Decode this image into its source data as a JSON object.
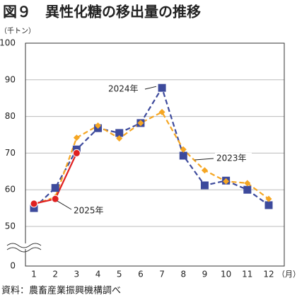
{
  "chart_data": {
    "type": "line",
    "title": "図９　異性化糖の移出量の推移",
    "y_label": "（千トン）",
    "x_label": "（月）",
    "source": "資料：農畜産業振興機構調べ",
    "categories": [
      "1",
      "2",
      "3",
      "4",
      "5",
      "6",
      "7",
      "8",
      "9",
      "10",
      "11",
      "12"
    ],
    "series": [
      {
        "name": "2024年",
        "color": "#3d4a9c",
        "marker": "square",
        "dashed": true,
        "values": [
          55,
          60.5,
          71,
          76.8,
          75.5,
          78.2,
          87.8,
          69.3,
          61.2,
          62.5,
          60,
          55.8
        ]
      },
      {
        "name": "2023年",
        "color": "#f5a623",
        "marker": "diamond",
        "dashed": true,
        "values": [
          56,
          58,
          74.2,
          77.5,
          74,
          78.2,
          81.2,
          71,
          65.3,
          62.3,
          61.8,
          57.5
        ]
      },
      {
        "name": "2025年",
        "color": "#e02020",
        "marker": "circle",
        "dashed": false,
        "values": [
          56.2,
          57.5,
          70,
          null,
          null,
          null,
          null,
          null,
          null,
          null,
          null,
          null
        ]
      }
    ],
    "ylim": [
      0,
      100
    ],
    "yticks": [
      0,
      50,
      60,
      70,
      80,
      90,
      100
    ],
    "y_break": true,
    "grid": true
  }
}
